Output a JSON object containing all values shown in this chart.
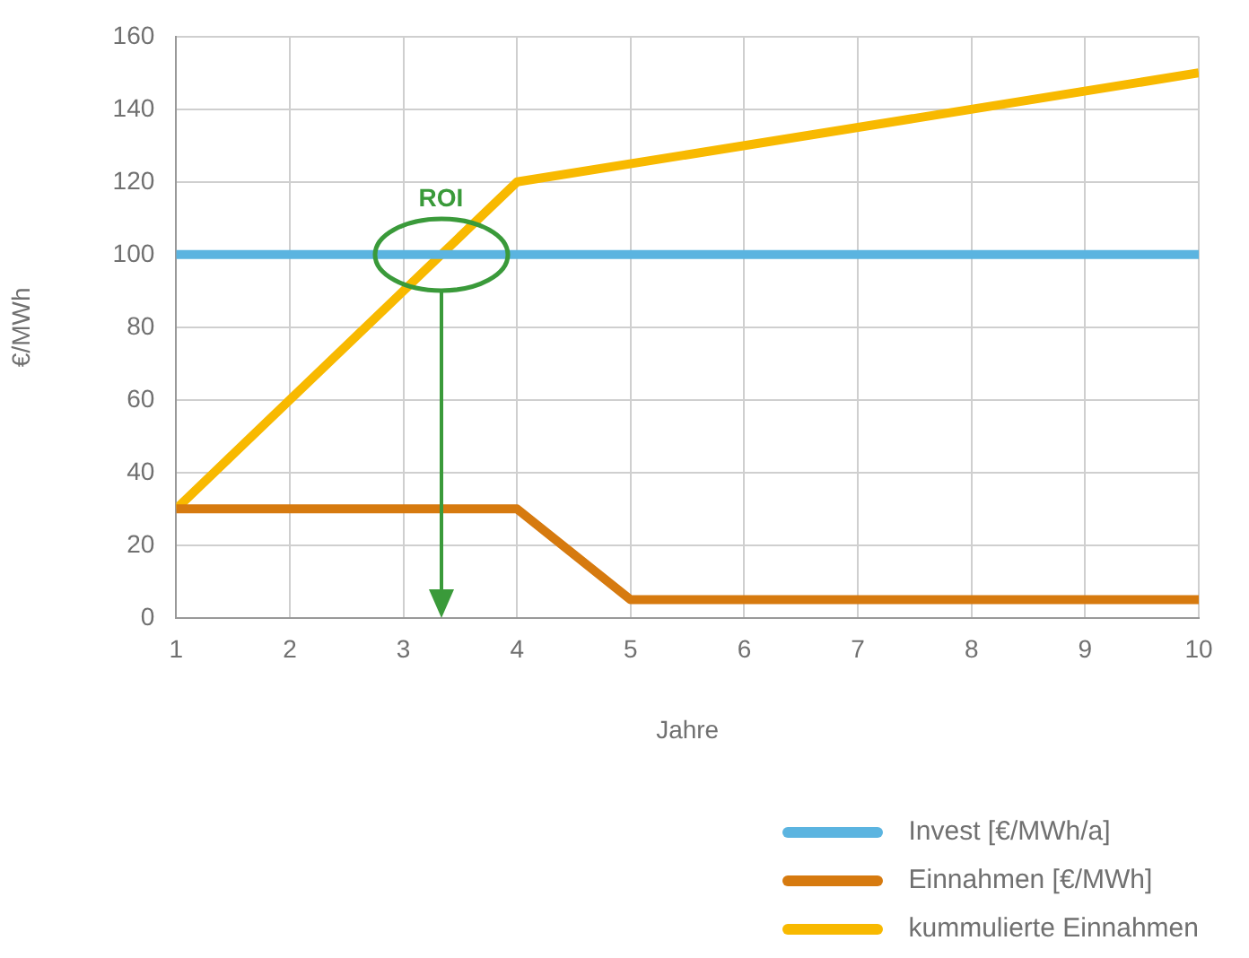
{
  "chart_data": {
    "type": "line",
    "ylabel": "€/MWh",
    "xlabel": "Jahre",
    "xlim": [
      1,
      10
    ],
    "xticks": [
      1,
      2,
      3,
      4,
      5,
      6,
      7,
      8,
      9,
      10
    ],
    "ylim": [
      0,
      160
    ],
    "yticks": [
      0,
      20,
      40,
      60,
      80,
      100,
      120,
      140,
      160
    ],
    "grid": true,
    "legend": "bottom right",
    "marker": "none",
    "line_style": "solid",
    "series": [
      {
        "name": "Invest [€/MWh/a]",
        "color": "#5bb4e0",
        "x": [
          1,
          10
        ],
        "values": [
          100,
          100
        ]
      },
      {
        "name": "Einnahmen [€/MWh]",
        "color": "#d67a0f",
        "x": [
          1,
          4,
          5,
          10
        ],
        "values": [
          30,
          30,
          5,
          5
        ]
      },
      {
        "name": "kummulierte Einnahmen",
        "color": "#f8b900",
        "x": [
          1,
          4,
          10
        ],
        "values": [
          30,
          120,
          150
        ]
      }
    ],
    "annotations": [
      {
        "text": "ROI",
        "x": 3.33,
        "y": 100
      }
    ]
  }
}
